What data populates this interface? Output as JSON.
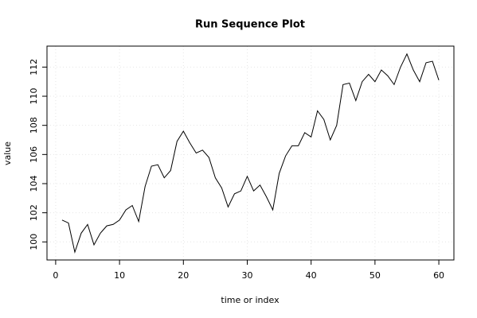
{
  "chart_data": {
    "type": "line",
    "title": "Run Sequence Plot",
    "xlabel": "time or index",
    "ylabel": "value",
    "x": [
      1,
      2,
      3,
      4,
      5,
      6,
      7,
      8,
      9,
      10,
      11,
      12,
      13,
      14,
      15,
      16,
      17,
      18,
      19,
      20,
      21,
      22,
      23,
      24,
      25,
      26,
      27,
      28,
      29,
      30,
      31,
      32,
      33,
      34,
      35,
      36,
      37,
      38,
      39,
      40,
      41,
      42,
      43,
      44,
      45,
      46,
      47,
      48,
      49,
      50,
      51,
      52,
      53,
      54,
      55,
      56,
      57,
      58,
      59,
      60
    ],
    "series": [
      {
        "name": "value",
        "color": "#000000",
        "values": [
          101.5,
          101.3,
          99.3,
          100.6,
          101.2,
          99.8,
          100.6,
          101.1,
          101.2,
          101.5,
          102.2,
          102.5,
          101.4,
          103.8,
          105.2,
          105.3,
          104.4,
          104.9,
          106.9,
          107.6,
          106.8,
          106.1,
          106.3,
          105.8,
          104.4,
          103.7,
          102.4,
          103.3,
          103.5,
          104.5,
          103.5,
          103.9,
          103.1,
          102.2,
          104.7,
          105.9,
          106.6,
          106.6,
          107.5,
          107.2,
          109.0,
          108.4,
          107.0,
          108.0,
          110.8,
          110.9,
          109.7,
          111.0,
          111.5,
          111.0,
          111.8,
          111.4,
          110.8,
          112.0,
          112.9,
          111.8,
          111.0,
          112.3,
          112.4,
          111.1
        ]
      }
    ],
    "xlim": [
      -1.36,
      62.36
    ],
    "xticks": [
      0,
      10,
      20,
      30,
      40,
      50,
      60
    ],
    "ylim": [
      98.76,
      113.44
    ],
    "yticks": [
      100,
      102,
      104,
      106,
      108,
      110,
      112
    ],
    "grid": true
  }
}
